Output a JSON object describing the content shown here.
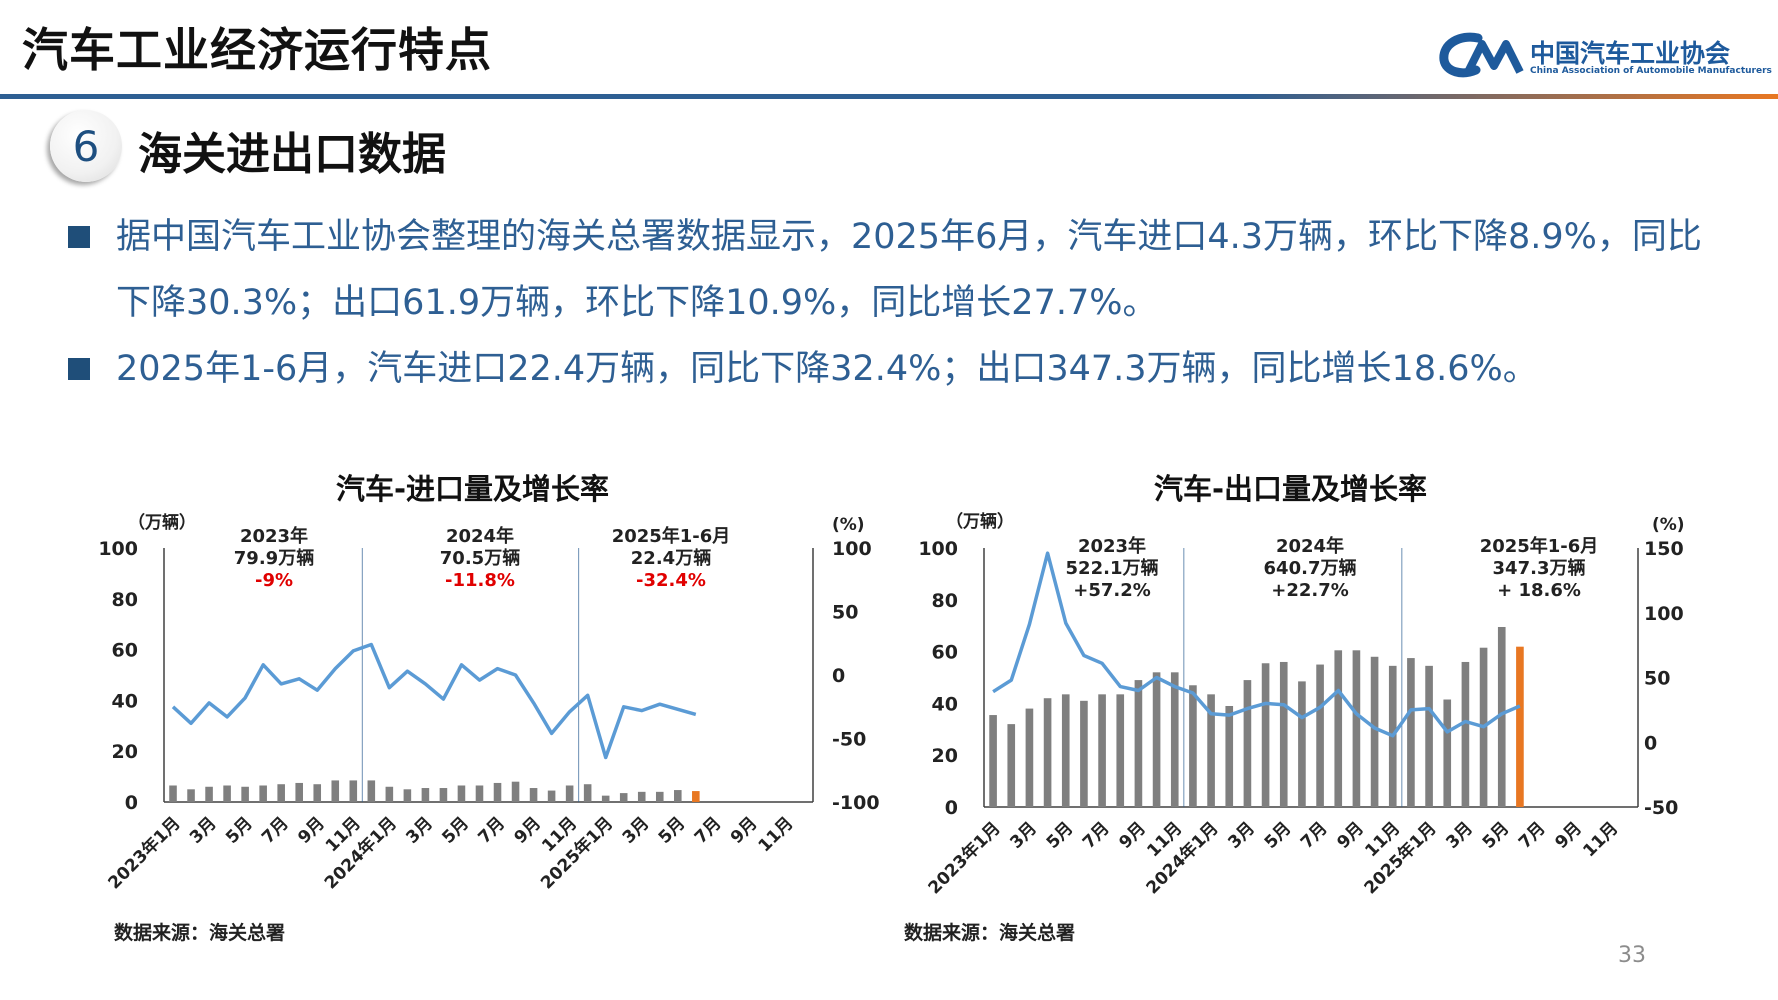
{
  "header": {
    "title": "汽车工业经济运行特点"
  },
  "logo": {
    "name_cn": "中国汽车工业协会",
    "name_en": "China Association of Automobile Manufacturers"
  },
  "section": {
    "number": "6",
    "title": "海关进出口数据"
  },
  "bullets": [
    "据中国汽车工业协会整理的海关总署数据显示，2025年6月，汽车进口4.3万辆，环比下降8.9%，同比下降30.3%；出口61.9万辆，环比下降10.9%，同比增长27.7%。",
    "2025年1-6月，汽车进口22.4万辆，同比下降32.4%；出口347.3万辆，同比增长18.6%。"
  ],
  "colors": {
    "bar": "#7f7f7f",
    "bar_highlight": "#e87722",
    "line": "#5b9bd5",
    "negative": "#e00000",
    "accent": "#2e5f93"
  },
  "chart_data": [
    {
      "type": "bar+line",
      "title": "汽车-进口量及增长率",
      "y_left_unit": "（万辆）",
      "y_right_unit": "(%)",
      "y_left_ticks": [
        "0",
        "20",
        "40",
        "60",
        "80",
        "100"
      ],
      "y_right_ticks": [
        "-100",
        "-50",
        "0",
        "50",
        "100"
      ],
      "ylim_left": [
        0,
        100
      ],
      "ylim_right": [
        -100,
        100
      ],
      "x_tick_labels": [
        "2023年1月",
        "3月",
        "5月",
        "7月",
        "9月",
        "11月",
        "2024年1月",
        "3月",
        "5月",
        "7月",
        "9月",
        "11月",
        "2025年1月",
        "3月",
        "5月",
        "7月",
        "9月",
        "11月"
      ],
      "bar_values": [
        6.5,
        5,
        6,
        6.5,
        6,
        6.5,
        7,
        7.5,
        7,
        8.5,
        8.5,
        8.5,
        6,
        5,
        5.5,
        5.5,
        6.5,
        6.5,
        7.5,
        8,
        5.5,
        4.5,
        6.5,
        7,
        2.5,
        3.5,
        4,
        4,
        4.7,
        4.3
      ],
      "highlight_index": 29,
      "line_values": [
        -25,
        -38,
        -22,
        -33,
        -18,
        8,
        -7,
        -3,
        -12,
        5,
        19,
        24,
        -10,
        3,
        -7,
        -19,
        8,
        -4,
        5,
        0,
        -22,
        -46,
        -29,
        -16,
        -65,
        -25,
        -28,
        -23,
        -27,
        -31
      ],
      "annotations": [
        {
          "lines": [
            "2023年",
            "79.9万辆"
          ],
          "pct": "-9%"
        },
        {
          "lines": [
            "2024年",
            "70.5万辆"
          ],
          "pct": "-11.8%"
        },
        {
          "lines": [
            "2025年1-6月",
            "22.4万辆"
          ],
          "pct": "-32.4%"
        }
      ],
      "source": "数据来源：海关总署"
    },
    {
      "type": "bar+line",
      "title": "汽车-出口量及增长率",
      "y_left_unit": "（万辆）",
      "y_right_unit": "(%)",
      "y_left_ticks": [
        "0",
        "20",
        "40",
        "60",
        "80",
        "100"
      ],
      "y_right_ticks": [
        "-50",
        "0",
        "50",
        "100",
        "150"
      ],
      "ylim_left": [
        0,
        100
      ],
      "ylim_right": [
        -50,
        150
      ],
      "x_tick_labels": [
        "2023年1月",
        "3月",
        "5月",
        "7月",
        "9月",
        "11月",
        "2024年1月",
        "3月",
        "5月",
        "7月",
        "9月",
        "11月",
        "2025年1月",
        "3月",
        "5月",
        "7月",
        "9月",
        "11月"
      ],
      "bar_values": [
        35.5,
        32,
        38,
        42,
        43.5,
        41,
        43.5,
        43.5,
        49,
        52,
        52,
        47,
        43.5,
        39,
        49,
        55.5,
        56,
        48.5,
        55,
        60.5,
        60.5,
        58,
        54.5,
        57.5,
        54.5,
        41.5,
        56,
        61.5,
        69.5,
        61.9
      ],
      "highlight_index": 29,
      "line_values": [
        39,
        48,
        91,
        146,
        92,
        67,
        61,
        43,
        40,
        50,
        43,
        38,
        22,
        21,
        26,
        30,
        29,
        19,
        27,
        40,
        22,
        11,
        5,
        25,
        26,
        8,
        16,
        12,
        22,
        28
      ],
      "annotations": [
        {
          "lines": [
            "2023年",
            "522.1万辆",
            "+57.2%"
          ]
        },
        {
          "lines": [
            "2024年",
            "640.7万辆",
            "+22.7%"
          ]
        },
        {
          "lines": [
            "2025年1-6月",
            "347.3万辆",
            "+ 18.6%"
          ]
        }
      ],
      "source": "数据来源：海关总署"
    }
  ],
  "page_number": "33"
}
